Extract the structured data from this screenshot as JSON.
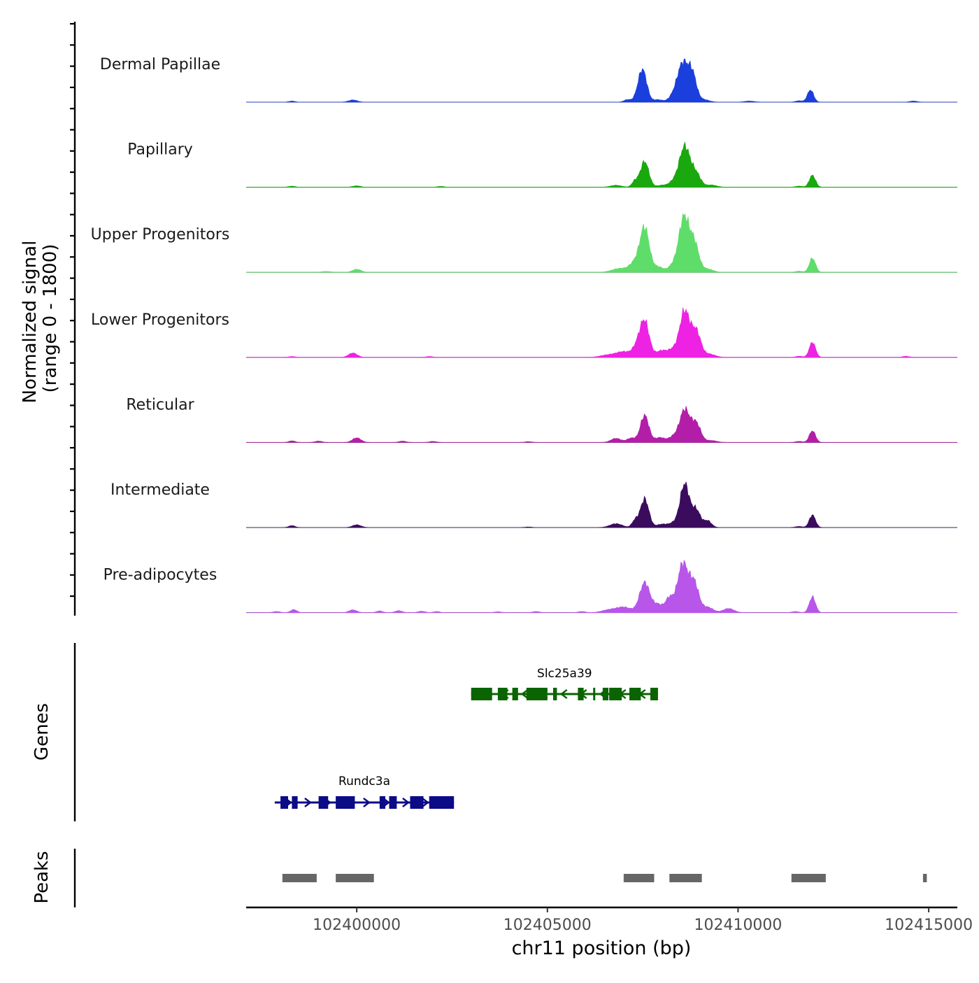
{
  "chart_data": {
    "type": "area",
    "chromosome": "chr11",
    "xlim": [
      102397100,
      102415750
    ],
    "xlabel": "chr11 position (bp)",
    "x_ticks": [
      102400000,
      102405000,
      102410000,
      102415000
    ],
    "x_tick_labels": [
      "102400000",
      "102405000",
      "102410000",
      "102415000"
    ],
    "coverage": {
      "ylabel_line1": "Normalized signal",
      "ylabel_line2": "(range 0 - 1800)",
      "ylim": [
        0,
        1800
      ],
      "tracks": [
        {
          "name": "Dermal Papillae",
          "color": "#1b3fdc",
          "peaks": [
            [
              102399900,
              80,
              110
            ],
            [
              102398300,
              40,
              80
            ],
            [
              102407100,
              90,
              90
            ],
            [
              102407400,
              160,
              110
            ],
            [
              102407500,
              1100,
              110
            ],
            [
              102407900,
              90,
              120
            ],
            [
              102408300,
              180,
              120
            ],
            [
              102408550,
              1400,
              140
            ],
            [
              102408800,
              950,
              110
            ],
            [
              102409100,
              90,
              140
            ],
            [
              102410300,
              40,
              120
            ],
            [
              102411900,
              450,
              80
            ],
            [
              102411600,
              50,
              90
            ],
            [
              102414600,
              40,
              90
            ]
          ]
        },
        {
          "name": "Papillary",
          "color": "#1aa80f",
          "peaks": [
            [
              102398300,
              40,
              80
            ],
            [
              102400000,
              50,
              100
            ],
            [
              102402200,
              30,
              90
            ],
            [
              102406800,
              70,
              140
            ],
            [
              102407300,
              220,
              80
            ],
            [
              102407550,
              950,
              110
            ],
            [
              102408000,
              70,
              120
            ],
            [
              102408300,
              180,
              120
            ],
            [
              102408600,
              1500,
              140
            ],
            [
              102408900,
              480,
              120
            ],
            [
              102409300,
              80,
              140
            ],
            [
              102411950,
              440,
              80
            ],
            [
              102411600,
              40,
              90
            ]
          ]
        },
        {
          "name": "Upper Progenitors",
          "color": "#5fdd6b",
          "peaks": [
            [
              102399200,
              30,
              120
            ],
            [
              102400000,
              110,
              110
            ],
            [
              102406900,
              140,
              200
            ],
            [
              102407300,
              350,
              140
            ],
            [
              102407550,
              1600,
              120
            ],
            [
              102407900,
              200,
              140
            ],
            [
              102408300,
              250,
              120
            ],
            [
              102408580,
              2000,
              130
            ],
            [
              102408850,
              1050,
              120
            ],
            [
              102409200,
              120,
              140
            ],
            [
              102411950,
              520,
              80
            ],
            [
              102411600,
              40,
              90
            ]
          ]
        },
        {
          "name": "Lower Progenitors",
          "color": "#ee22e2",
          "peaks": [
            [
              102398300,
              30,
              90
            ],
            [
              102399900,
              160,
              110
            ],
            [
              102401900,
              30,
              90
            ],
            [
              102406600,
              90,
              200
            ],
            [
              102407000,
              200,
              180
            ],
            [
              102407350,
              350,
              120
            ],
            [
              102407550,
              1300,
              120
            ],
            [
              102408000,
              250,
              150
            ],
            [
              102408300,
              250,
              120
            ],
            [
              102408600,
              1700,
              130
            ],
            [
              102408900,
              950,
              120
            ],
            [
              102409250,
              120,
              150
            ],
            [
              102411950,
              560,
              80
            ],
            [
              102411600,
              40,
              90
            ],
            [
              102414400,
              40,
              90
            ]
          ]
        },
        {
          "name": "Reticular",
          "color": "#b31ea9",
          "peaks": [
            [
              102398300,
              60,
              80
            ],
            [
              102399000,
              50,
              90
            ],
            [
              102400000,
              170,
              110
            ],
            [
              102401200,
              50,
              90
            ],
            [
              102402000,
              40,
              90
            ],
            [
              102404500,
              30,
              90
            ],
            [
              102406800,
              150,
              130
            ],
            [
              102407200,
              160,
              110
            ],
            [
              102407550,
              1000,
              110
            ],
            [
              102407950,
              180,
              130
            ],
            [
              102408300,
              200,
              120
            ],
            [
              102408600,
              1200,
              130
            ],
            [
              102408900,
              700,
              120
            ],
            [
              102409300,
              70,
              140
            ],
            [
              102411950,
              430,
              80
            ],
            [
              102411600,
              40,
              90
            ]
          ]
        },
        {
          "name": "Intermediate",
          "color": "#3b0c5e",
          "peaks": [
            [
              102398300,
              70,
              80
            ],
            [
              102400000,
              100,
              110
            ],
            [
              102404500,
              20,
              90
            ],
            [
              102406800,
              140,
              160
            ],
            [
              102407300,
              250,
              80
            ],
            [
              102407550,
              1050,
              110
            ],
            [
              102408000,
              120,
              130
            ],
            [
              102408300,
              150,
              120
            ],
            [
              102408600,
              1600,
              120
            ],
            [
              102408900,
              650,
              110
            ],
            [
              102409200,
              250,
              100
            ],
            [
              102411950,
              460,
              80
            ],
            [
              102411600,
              40,
              90
            ]
          ]
        },
        {
          "name": "Pre-adipocytes",
          "color": "#b856ea",
          "peaks": [
            [
              102397900,
              40,
              90
            ],
            [
              102398350,
              110,
              80
            ],
            [
              102399900,
              100,
              100
            ],
            [
              102400600,
              60,
              80
            ],
            [
              102401100,
              70,
              90
            ],
            [
              102401700,
              50,
              90
            ],
            [
              102402100,
              40,
              80
            ],
            [
              102403700,
              30,
              90
            ],
            [
              102404700,
              40,
              90
            ],
            [
              102405900,
              40,
              90
            ],
            [
              102406600,
              90,
              180
            ],
            [
              102407000,
              200,
              200
            ],
            [
              102407550,
              1100,
              130
            ],
            [
              102407900,
              300,
              140
            ],
            [
              102408200,
              500,
              100
            ],
            [
              102408550,
              1800,
              140
            ],
            [
              102408850,
              1050,
              120
            ],
            [
              102409200,
              200,
              140
            ],
            [
              102409750,
              150,
              140
            ],
            [
              102411950,
              580,
              80
            ],
            [
              102411500,
              40,
              90
            ]
          ]
        }
      ]
    },
    "genes": {
      "ylabel": "Genes",
      "items": [
        {
          "name": "Slc25a39",
          "color": "#0a6400",
          "strand": "-",
          "start": 102403000,
          "end": 102407900,
          "exons": [
            [
              102403000,
              102403550
            ],
            [
              102403700,
              102403950
            ],
            [
              102404080,
              102404230
            ],
            [
              102404450,
              102405000
            ],
            [
              102405150,
              102405250
            ],
            [
              102405800,
              102405950
            ],
            [
              102406200,
              102406250
            ],
            [
              102406450,
              102406600
            ],
            [
              102406620,
              102406950
            ],
            [
              102407150,
              102407450
            ],
            [
              102407700,
              102407900
            ]
          ]
        },
        {
          "name": "Rundc3a",
          "color": "#0b0b87",
          "strand": "+",
          "start": 102397850,
          "end": 102402550,
          "exons": [
            [
              102398000,
              102398200
            ],
            [
              102398300,
              102398450
            ],
            [
              102399000,
              102399250
            ],
            [
              102399450,
              102399950
            ],
            [
              102400600,
              102400750
            ],
            [
              102400850,
              102401050
            ],
            [
              102401400,
              102401750
            ],
            [
              102401900,
              102402550
            ]
          ]
        }
      ]
    },
    "peaks": {
      "ylabel": "Peaks",
      "color": "#666666",
      "regions": [
        [
          102398050,
          102398950
        ],
        [
          102399450,
          102400450
        ],
        [
          102407000,
          102407800
        ],
        [
          102408200,
          102409050
        ],
        [
          102411400,
          102412300
        ],
        [
          102414850,
          102414950
        ]
      ]
    }
  }
}
